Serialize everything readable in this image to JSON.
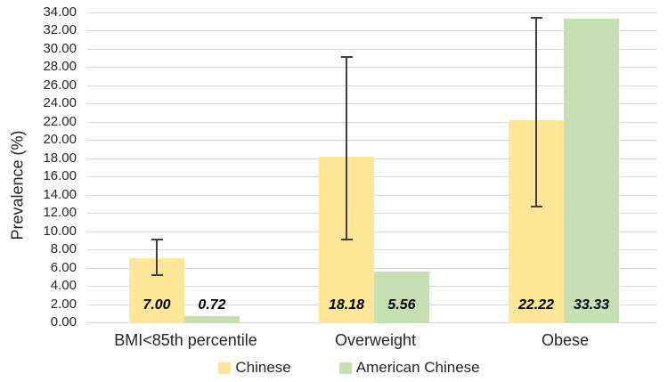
{
  "figure": {
    "background": "#FFFFFF"
  },
  "chart_data": {
    "type": "bar",
    "title": "",
    "ylabel": "Prevalence (%)",
    "xlabel": "",
    "categories": [
      "BMI<85th percentile",
      "Overweight",
      "Obese"
    ],
    "series": [
      {
        "name": "Chinese",
        "color": "#FFE699",
        "values": [
          7.0,
          18.18,
          22.22
        ],
        "value_labels": [
          "7.00",
          "18.18",
          "22.22"
        ],
        "error_bars": [
          {
            "low": 5.2,
            "high": 9.1
          },
          {
            "low": 9.1,
            "high": 29.1
          },
          {
            "low": 12.7,
            "high": 33.4
          }
        ]
      },
      {
        "name": "American Chinese",
        "color": "#C6E0B4",
        "values": [
          0.72,
          5.56,
          33.33
        ],
        "value_labels": [
          "0.72",
          "5.56",
          "33.33"
        ],
        "error_bars": null
      }
    ],
    "ylim": [
      0,
      34
    ],
    "ytick_step": 2,
    "yticks": [
      "34.00",
      "32.00",
      "30.00",
      "28.00",
      "26.00",
      "24.00",
      "22.00",
      "20.00",
      "18.00",
      "16.00",
      "14.00",
      "12.00",
      "10.00",
      "8.00",
      "6.00",
      "4.00",
      "2.00",
      "0.00"
    ],
    "grid": true,
    "legend_position": "bottom",
    "colors": {
      "gridline": "#D9D9D9",
      "error_bar": "#404040",
      "axis_text": "#262626",
      "value_label": "#000000"
    }
  }
}
